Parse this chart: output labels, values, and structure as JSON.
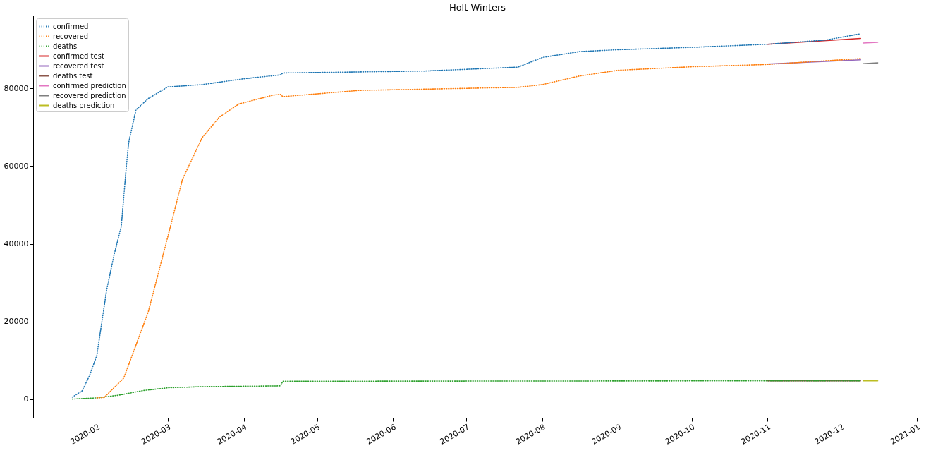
{
  "chart_data": {
    "type": "line",
    "title": "Holt-Winters",
    "xlim": [
      "2020-01-06",
      "2021-01-03"
    ],
    "xticks": [
      {
        "value": "2020-02-01",
        "label": "2020-02"
      },
      {
        "value": "2020-03-01",
        "label": "2020-03"
      },
      {
        "value": "2020-04-01",
        "label": "2020-04"
      },
      {
        "value": "2020-05-01",
        "label": "2020-05"
      },
      {
        "value": "2020-06-01",
        "label": "2020-06"
      },
      {
        "value": "2020-07-01",
        "label": "2020-07"
      },
      {
        "value": "2020-08-01",
        "label": "2020-08"
      },
      {
        "value": "2020-09-01",
        "label": "2020-09"
      },
      {
        "value": "2020-10-01",
        "label": "2020-10"
      },
      {
        "value": "2020-11-01",
        "label": "2020-11"
      },
      {
        "value": "2020-12-01",
        "label": "2020-12"
      },
      {
        "value": "2021-01-01",
        "label": "2021-01"
      }
    ],
    "ylim": [
      -4800,
      98800
    ],
    "yticks": [
      0,
      20000,
      40000,
      60000,
      80000
    ],
    "grid": false,
    "legend": "top left",
    "marker": "none",
    "series": [
      {
        "name": "confirmed",
        "color": "#1f77b4",
        "line_style": "dotted",
        "x": [
          "2020-01-22",
          "2020-01-26",
          "2020-01-29",
          "2020-02-01",
          "2020-02-05",
          "2020-02-08",
          "2020-02-11",
          "2020-02-13",
          "2020-02-14",
          "2020-02-17",
          "2020-02-22",
          "2020-03-01",
          "2020-03-15",
          "2020-04-01",
          "2020-04-16",
          "2020-04-17",
          "2020-06-14",
          "2020-07-22",
          "2020-08-01",
          "2020-08-16",
          "2020-09-01",
          "2020-10-01",
          "2020-11-01",
          "2020-11-25",
          "2020-12-09"
        ],
        "values": [
          500,
          2100,
          6000,
          11200,
          28000,
          37000,
          44500,
          59400,
          66000,
          74500,
          77400,
          80400,
          81000,
          82500,
          83500,
          84000,
          84500,
          85500,
          88000,
          89500,
          90000,
          90600,
          91400,
          92500,
          94100
        ]
      },
      {
        "name": "recovered",
        "color": "#ff7f0e",
        "line_style": "dotted",
        "x": [
          "2020-02-01",
          "2020-02-04",
          "2020-02-12",
          "2020-02-22",
          "2020-03-01",
          "2020-03-07",
          "2020-03-15",
          "2020-03-22",
          "2020-03-30",
          "2020-04-13",
          "2020-04-16",
          "2020-04-17",
          "2020-05-18",
          "2020-07-22",
          "2020-08-01",
          "2020-08-16",
          "2020-09-01",
          "2020-10-01",
          "2020-11-01",
          "2020-12-09"
        ],
        "values": [
          300,
          400,
          5400,
          22400,
          41800,
          56600,
          67300,
          72600,
          76000,
          78300,
          78500,
          77900,
          79500,
          80300,
          81000,
          83200,
          84700,
          85600,
          86200,
          87700
        ]
      },
      {
        "name": "deaths",
        "color": "#2ca02c",
        "line_style": "dotted",
        "x": [
          "2020-01-22",
          "2020-02-01",
          "2020-02-10",
          "2020-02-20",
          "2020-03-01",
          "2020-03-15",
          "2020-04-16",
          "2020-04-17",
          "2020-11-01",
          "2020-12-09"
        ],
        "values": [
          0,
          300,
          1000,
          2200,
          2900,
          3200,
          3400,
          4600,
          4700,
          4700
        ]
      },
      {
        "name": "confirmed test",
        "color": "#d62728",
        "line_style": "solid",
        "x": [
          "2020-11-01",
          "2020-12-09"
        ],
        "values": [
          91400,
          92900
        ]
      },
      {
        "name": "recovered test",
        "color": "#9467bd",
        "line_style": "solid",
        "x": [
          "2020-11-01",
          "2020-12-09"
        ],
        "values": [
          86300,
          87400
        ]
      },
      {
        "name": "deaths test",
        "color": "#8c564b",
        "line_style": "solid",
        "x": [
          "2020-11-01",
          "2020-12-09"
        ],
        "values": [
          4700,
          4700
        ]
      },
      {
        "name": "confirmed prediction",
        "color": "#e377c2",
        "line_style": "solid",
        "x": [
          "2020-12-10",
          "2020-12-16"
        ],
        "values": [
          91700,
          91900
        ]
      },
      {
        "name": "recovered prediction",
        "color": "#7f7f7f",
        "line_style": "solid",
        "x": [
          "2020-12-10",
          "2020-12-16"
        ],
        "values": [
          86400,
          86600
        ]
      },
      {
        "name": "deaths prediction",
        "color": "#bcbd22",
        "line_style": "solid",
        "x": [
          "2020-12-10",
          "2020-12-16"
        ],
        "values": [
          4700,
          4700
        ]
      }
    ]
  }
}
